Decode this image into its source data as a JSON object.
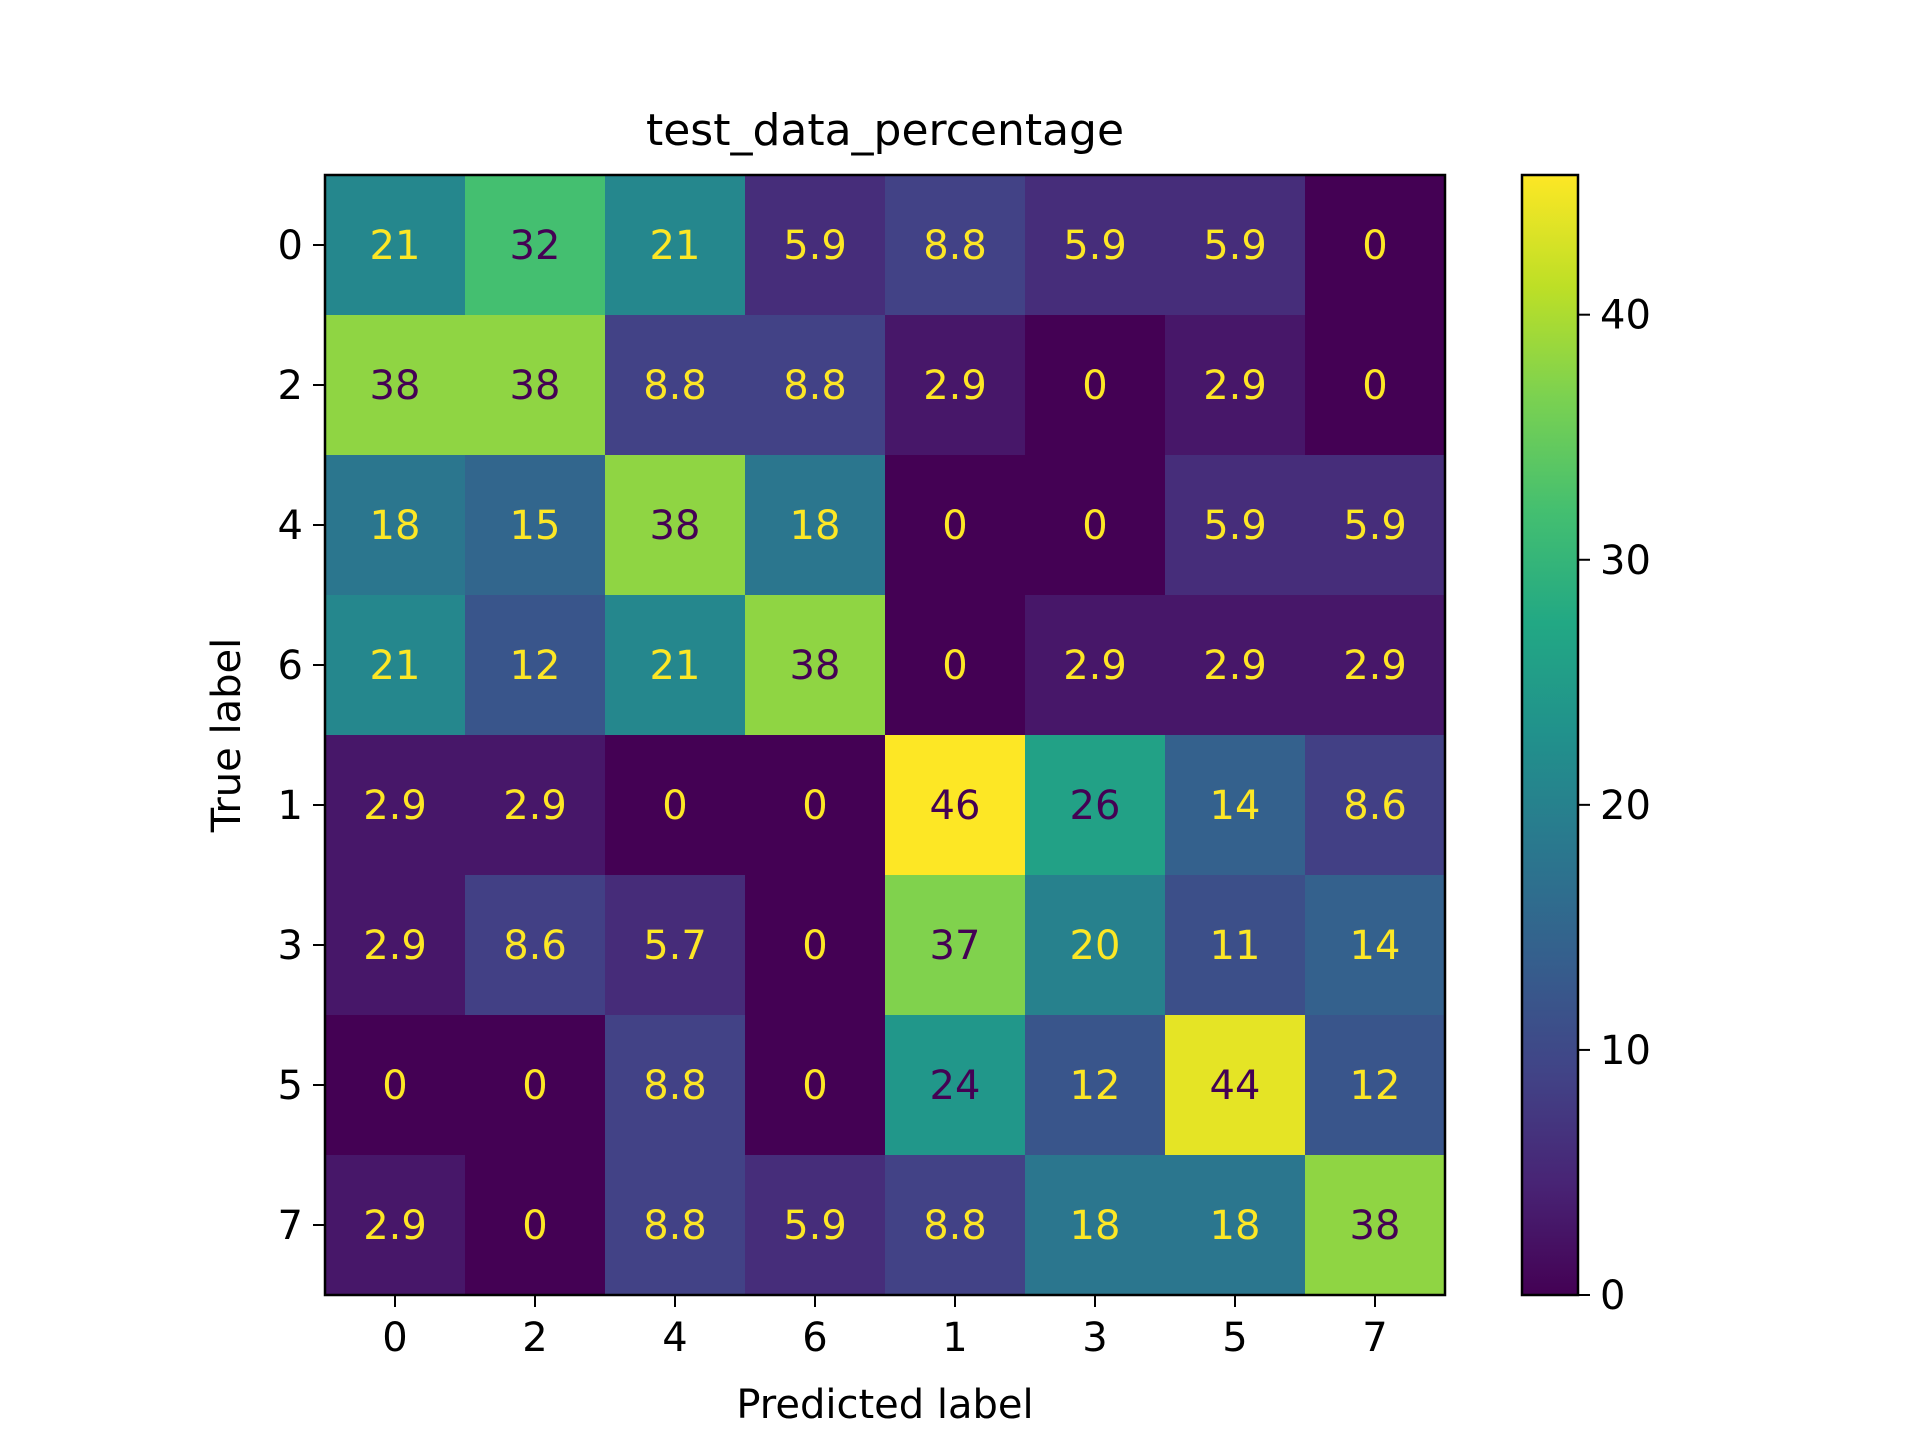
{
  "chart_data": {
    "type": "heatmap",
    "title": "test_data_percentage",
    "xlabel": "Predicted label",
    "ylabel": "True label",
    "x_categories": [
      "0",
      "2",
      "4",
      "6",
      "1",
      "3",
      "5",
      "7"
    ],
    "y_categories": [
      "0",
      "2",
      "4",
      "6",
      "1",
      "3",
      "5",
      "7"
    ],
    "values": [
      [
        21,
        32,
        21,
        5.9,
        8.8,
        5.9,
        5.9,
        0
      ],
      [
        38,
        38,
        8.8,
        8.8,
        2.9,
        0,
        2.9,
        0
      ],
      [
        18,
        15,
        38,
        18,
        0,
        0,
        5.9,
        5.9
      ],
      [
        21,
        12,
        21,
        38,
        0,
        2.9,
        2.9,
        2.9
      ],
      [
        2.9,
        2.9,
        0,
        0,
        46,
        26,
        14,
        8.6
      ],
      [
        2.9,
        8.6,
        5.7,
        0,
        37,
        20,
        11,
        14
      ],
      [
        0,
        0,
        8.8,
        0,
        24,
        12,
        44,
        12
      ],
      [
        2.9,
        0,
        8.8,
        5.9,
        8.8,
        18,
        18,
        38
      ]
    ],
    "colormap": "viridis",
    "vmin": 0,
    "vmax": 45.7,
    "colorbar_ticks": [
      0,
      10,
      20,
      30,
      40
    ],
    "text_colors": {
      "light": "#fde725",
      "dark": "#440154"
    }
  }
}
